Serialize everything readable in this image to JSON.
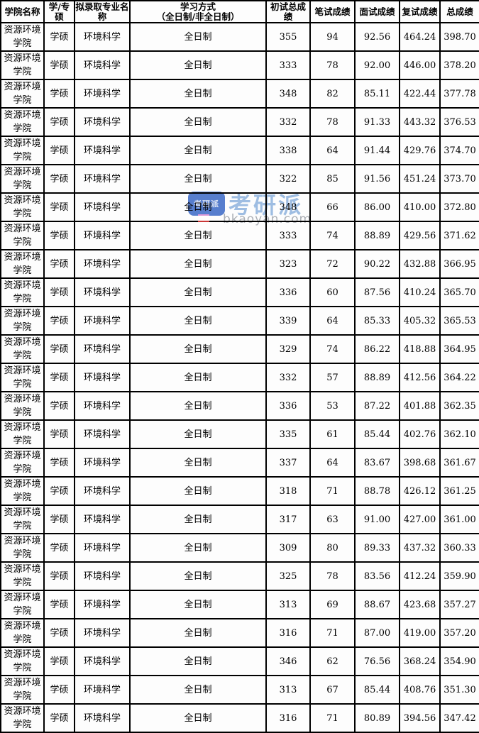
{
  "table": {
    "headers": [
      "学院名称",
      "学/专硕",
      "拟录取专业名称",
      "学习方式\n（全日制/非全日制）",
      "初试总成绩",
      "笔试成绩",
      "面试成绩",
      "复试成绩",
      "总成绩"
    ],
    "column_keys": [
      "college",
      "degree-type",
      "major",
      "study-mode",
      "initial-total-score",
      "written-score",
      "interview-score",
      "retest-score",
      "total-score"
    ],
    "rows": [
      [
        "资源环境学院",
        "学硕",
        "环境科学",
        "全日制",
        "355",
        "94",
        "92.56",
        "464.24",
        "398.70"
      ],
      [
        "资源环境学院",
        "学硕",
        "环境科学",
        "全日制",
        "333",
        "78",
        "92.00",
        "446.00",
        "378.20"
      ],
      [
        "资源环境学院",
        "学硕",
        "环境科学",
        "全日制",
        "348",
        "82",
        "85.11",
        "422.44",
        "377.78"
      ],
      [
        "资源环境学院",
        "学硕",
        "环境科学",
        "全日制",
        "332",
        "78",
        "91.33",
        "443.32",
        "376.53"
      ],
      [
        "资源环境学院",
        "学硕",
        "环境科学",
        "全日制",
        "338",
        "64",
        "91.44",
        "429.76",
        "374.70"
      ],
      [
        "资源环境学院",
        "学硕",
        "环境科学",
        "全日制",
        "322",
        "85",
        "91.56",
        "451.24",
        "373.70"
      ],
      [
        "资源环境学院",
        "学硕",
        "环境科学",
        "全日制",
        "348",
        "66",
        "86.00",
        "410.00",
        "372.80"
      ],
      [
        "资源环境学院",
        "学硕",
        "环境科学",
        "全日制",
        "333",
        "74",
        "88.89",
        "429.56",
        "371.62"
      ],
      [
        "资源环境学院",
        "学硕",
        "环境科学",
        "全日制",
        "323",
        "72",
        "90.22",
        "432.88",
        "366.95"
      ],
      [
        "资源环境学院",
        "学硕",
        "环境科学",
        "全日制",
        "336",
        "60",
        "87.56",
        "410.24",
        "365.70"
      ],
      [
        "资源环境学院",
        "学硕",
        "环境科学",
        "全日制",
        "339",
        "64",
        "85.33",
        "405.32",
        "365.53"
      ],
      [
        "资源环境学院",
        "学硕",
        "环境科学",
        "全日制",
        "329",
        "74",
        "86.22",
        "418.88",
        "364.95"
      ],
      [
        "资源环境学院",
        "学硕",
        "环境科学",
        "全日制",
        "332",
        "57",
        "88.89",
        "412.56",
        "364.22"
      ],
      [
        "资源环境学院",
        "学硕",
        "环境科学",
        "全日制",
        "336",
        "53",
        "87.22",
        "401.88",
        "362.35"
      ],
      [
        "资源环境学院",
        "学硕",
        "环境科学",
        "全日制",
        "335",
        "61",
        "85.44",
        "402.76",
        "362.10"
      ],
      [
        "资源环境学院",
        "学硕",
        "环境科学",
        "全日制",
        "337",
        "64",
        "83.67",
        "398.68",
        "361.67"
      ],
      [
        "资源环境学院",
        "学硕",
        "环境科学",
        "全日制",
        "318",
        "71",
        "88.78",
        "426.12",
        "361.25"
      ],
      [
        "资源环境学院",
        "学硕",
        "环境科学",
        "全日制",
        "317",
        "63",
        "91.00",
        "427.00",
        "361.00"
      ],
      [
        "资源环境学院",
        "学硕",
        "环境科学",
        "全日制",
        "309",
        "80",
        "89.33",
        "437.32",
        "360.33"
      ],
      [
        "资源环境学院",
        "学硕",
        "环境科学",
        "全日制",
        "325",
        "78",
        "83.56",
        "412.24",
        "359.90"
      ],
      [
        "资源环境学院",
        "学硕",
        "环境科学",
        "全日制",
        "313",
        "69",
        "88.67",
        "423.68",
        "357.27"
      ],
      [
        "资源环境学院",
        "学硕",
        "环境科学",
        "全日制",
        "316",
        "71",
        "87.00",
        "419.00",
        "357.20"
      ],
      [
        "资源环境学院",
        "学硕",
        "环境科学",
        "全日制",
        "346",
        "62",
        "76.56",
        "368.24",
        "354.90"
      ],
      [
        "资源环境学院",
        "学硕",
        "环境科学",
        "全日制",
        "313",
        "67",
        "85.44",
        "408.76",
        "351.30"
      ],
      [
        "资源环境学院",
        "学硕",
        "环境科学",
        "全日制",
        "316",
        "71",
        "80.89",
        "394.56",
        "347.42"
      ]
    ]
  },
  "watermark": {
    "logo_text": "考研派",
    "title": "考研派",
    "url": "bkaoyan.com",
    "logo_color": "#3a68c8",
    "title_color": "#9fbfe4",
    "url_color": "#aeb2b8",
    "red_accent_color": "#e03c3c"
  }
}
